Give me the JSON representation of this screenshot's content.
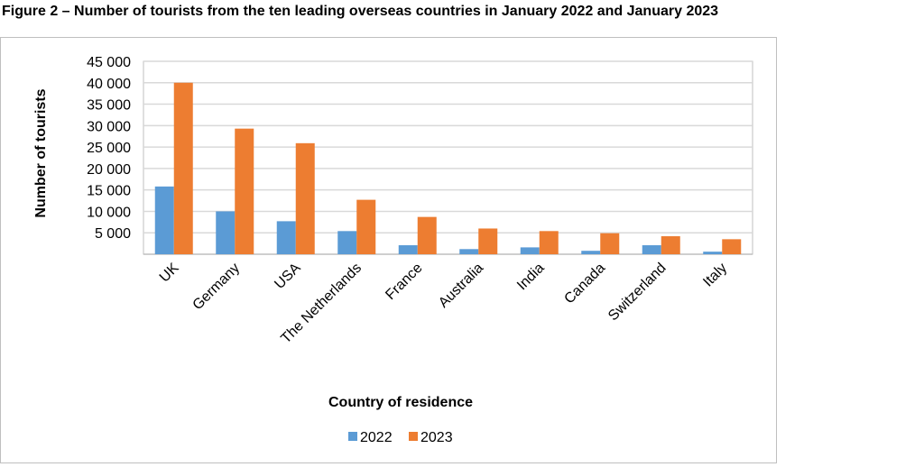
{
  "chart_data": {
    "type": "bar",
    "title": "Figure 2 – Number of tourists from the ten leading overseas countries in January 2022 and January 2023",
    "xlabel": "Country of residence",
    "ylabel": "Number of tourists",
    "ylim": [
      0,
      45000
    ],
    "yticks": [
      "5 000",
      "10 000",
      "15 000",
      "20 000",
      "25 000",
      "30 000",
      "35 000",
      "40 000",
      "45 000"
    ],
    "grid": true,
    "legend": "bottom",
    "categories": [
      "UK",
      "Germany",
      "USA",
      "The Netherlands",
      "France",
      "Australia",
      "India",
      "Canada",
      "Switzerland",
      "Italy"
    ],
    "series": [
      {
        "name": "2022",
        "color": "#5b9bd5",
        "values": [
          15800,
          10000,
          7700,
          5400,
          2100,
          1200,
          1600,
          800,
          2100,
          600
        ]
      },
      {
        "name": "2023",
        "color": "#ed7d31",
        "values": [
          40000,
          29300,
          25900,
          12700,
          8700,
          6000,
          5400,
          4900,
          4200,
          3500
        ]
      }
    ]
  }
}
